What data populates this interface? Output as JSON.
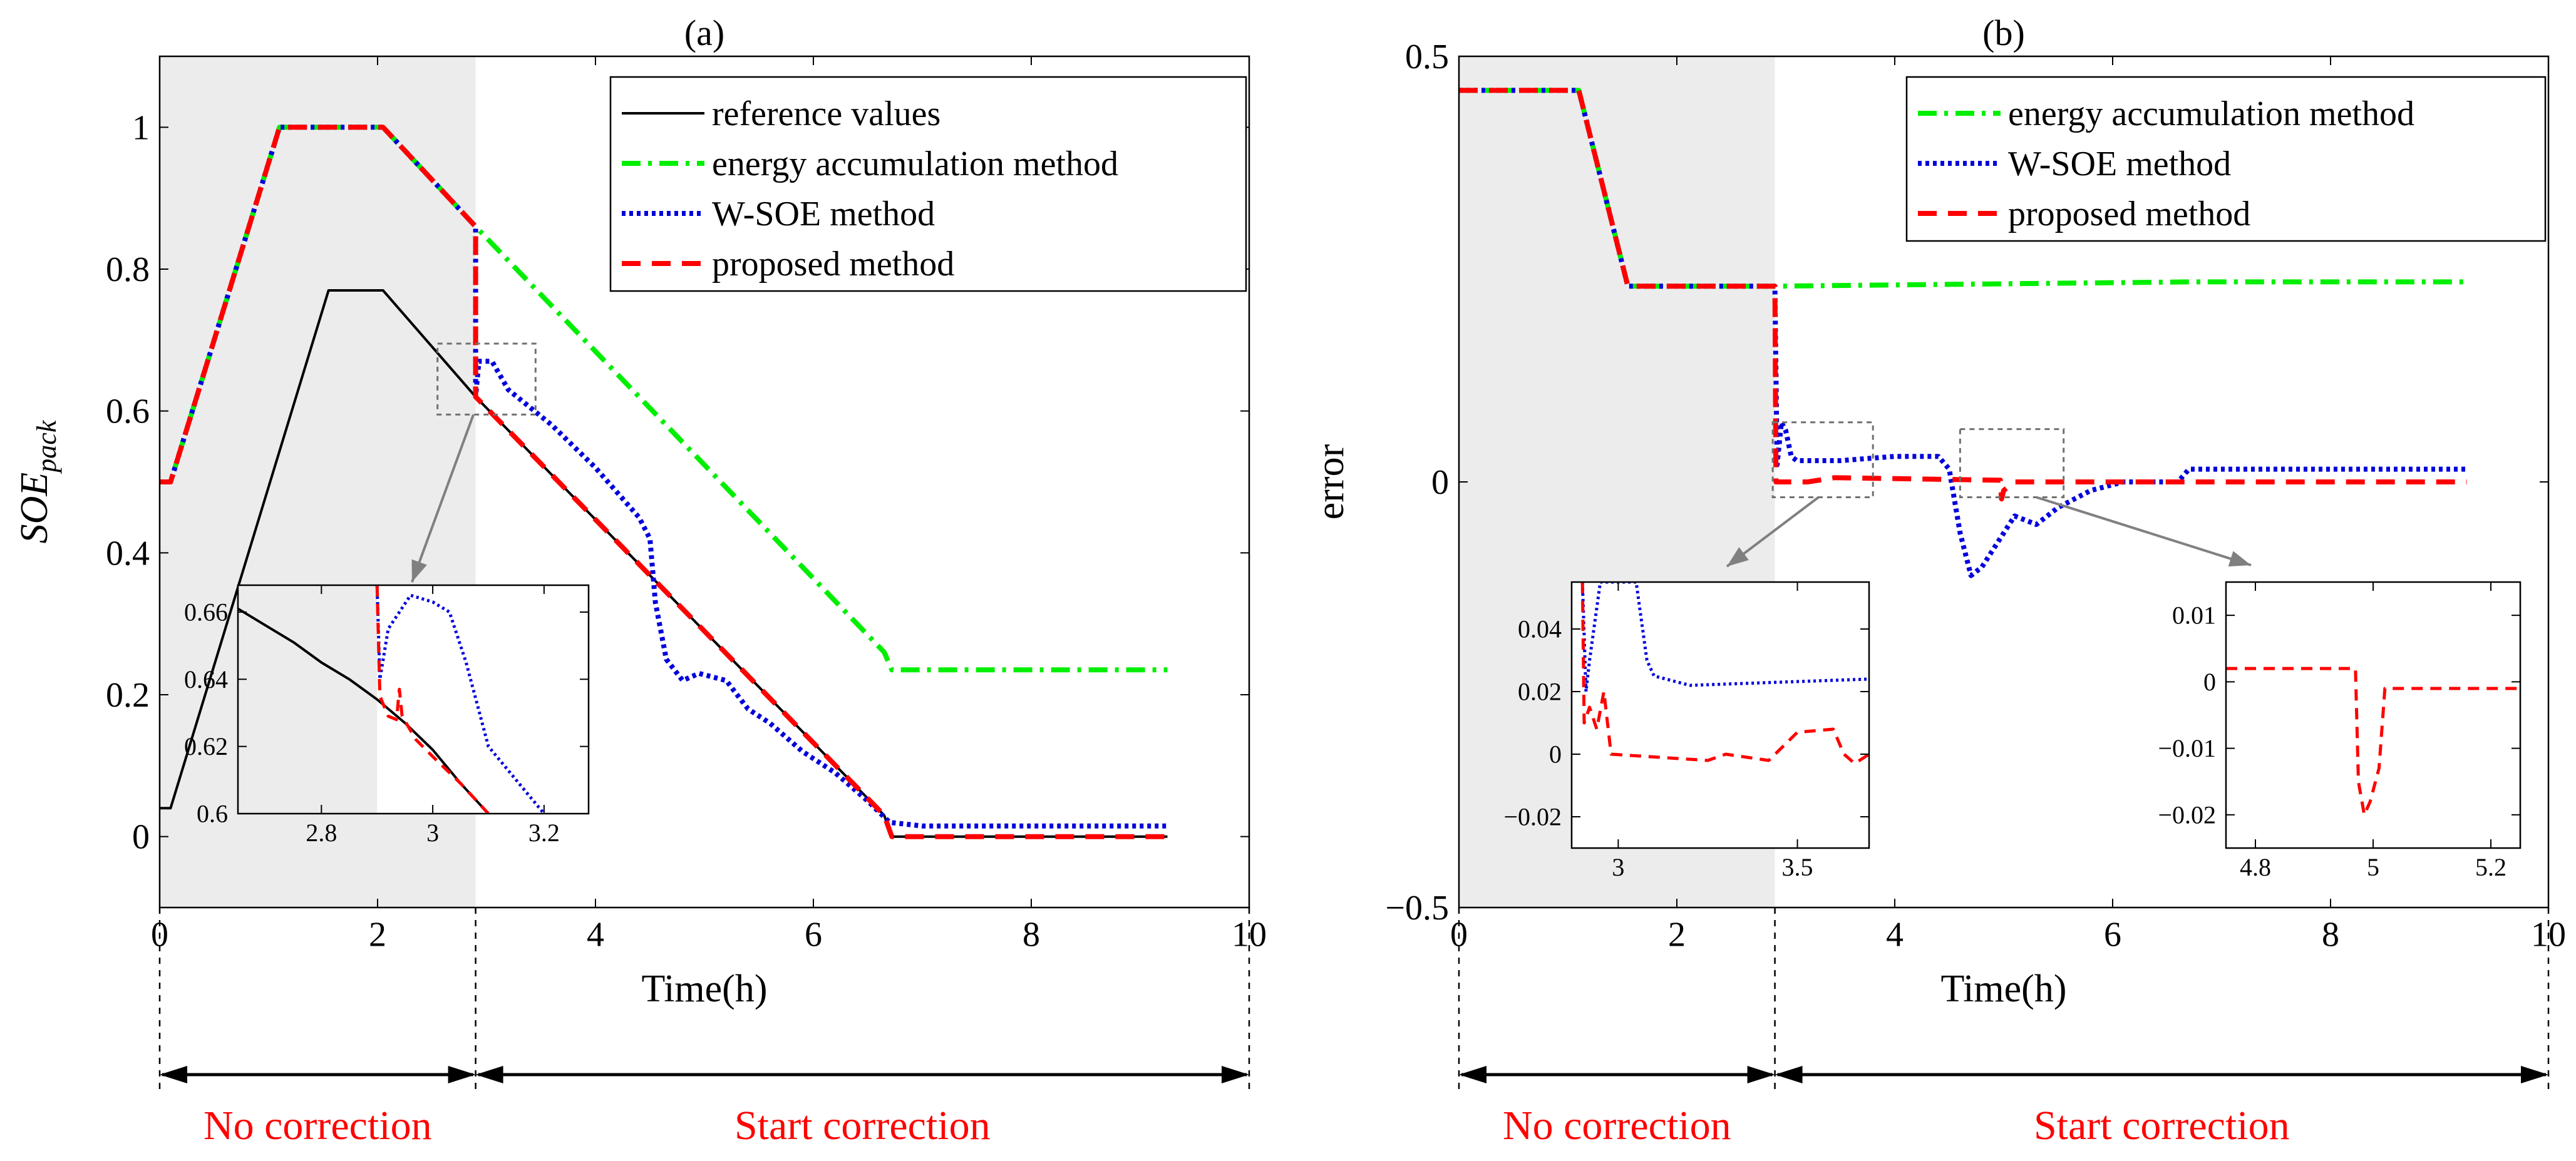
{
  "colors": {
    "reference": "#000000",
    "energy": "#00ee00",
    "wsoe": "#0000dd",
    "proposed": "#ff0000",
    "shade": "#ececec",
    "annotation": "#ff0000",
    "inset_box": "#707070"
  },
  "phases": {
    "no_correction": "No correction",
    "start_correction": "Start correction"
  },
  "chart_data": [
    {
      "panel_label": "(a)",
      "type": "line",
      "xlabel": "Time(h)",
      "ylabel": "SOE",
      "ylabel_sub": "pack",
      "xlim": [
        0,
        10
      ],
      "ylim": [
        -0.1,
        1.1
      ],
      "xticks": [
        0,
        2,
        4,
        6,
        8,
        10
      ],
      "yticks": [
        0,
        0.2,
        0.4,
        0.6,
        0.8,
        1
      ],
      "shaded_x_range": [
        0,
        2.9
      ],
      "grid": false,
      "legend_position": "top-right",
      "series": [
        {
          "name": "reference values",
          "key": "reference",
          "style": "solid",
          "points": [
            [
              0,
              0.04
            ],
            [
              0.1,
              0.04
            ],
            [
              1.55,
              0.77
            ],
            [
              2.05,
              0.77
            ],
            [
              2.9,
              0.62
            ],
            [
              6.65,
              0.03
            ],
            [
              6.72,
              0.0
            ],
            [
              9.25,
              0.0
            ]
          ]
        },
        {
          "name": "energy accumulation method",
          "key": "energy",
          "style": "dashdot",
          "points": [
            [
              0,
              0.5
            ],
            [
              0.1,
              0.5
            ],
            [
              1.1,
              1.0
            ],
            [
              2.05,
              1.0
            ],
            [
              2.9,
              0.86
            ],
            [
              6.65,
              0.26
            ],
            [
              6.72,
              0.235
            ],
            [
              9.25,
              0.235
            ]
          ]
        },
        {
          "name": "W-SOE method",
          "key": "wsoe",
          "style": "dotted",
          "points": [
            [
              0,
              0.5
            ],
            [
              0.1,
              0.5
            ],
            [
              1.1,
              1.0
            ],
            [
              2.05,
              1.0
            ],
            [
              2.9,
              0.86
            ],
            [
              2.9,
              0.62
            ],
            [
              2.93,
              0.67
            ],
            [
              3.05,
              0.67
            ],
            [
              3.2,
              0.63
            ],
            [
              3.6,
              0.58
            ],
            [
              4.0,
              0.52
            ],
            [
              4.4,
              0.45
            ],
            [
              4.5,
              0.42
            ],
            [
              4.55,
              0.33
            ],
            [
              4.65,
              0.25
            ],
            [
              4.8,
              0.22
            ],
            [
              4.95,
              0.23
            ],
            [
              5.2,
              0.22
            ],
            [
              5.4,
              0.18
            ],
            [
              5.6,
              0.16
            ],
            [
              5.9,
              0.12
            ],
            [
              6.2,
              0.09
            ],
            [
              6.5,
              0.05
            ],
            [
              6.7,
              0.02
            ],
            [
              7.0,
              0.015
            ],
            [
              9.25,
              0.015
            ]
          ]
        },
        {
          "name": "proposed method",
          "key": "proposed",
          "style": "dashed",
          "points": [
            [
              0,
              0.5
            ],
            [
              0.1,
              0.5
            ],
            [
              1.1,
              1.0
            ],
            [
              2.05,
              1.0
            ],
            [
              2.9,
              0.86
            ],
            [
              2.9,
              0.62
            ],
            [
              6.65,
              0.03
            ],
            [
              6.72,
              0.0
            ],
            [
              9.25,
              0.0
            ]
          ]
        }
      ],
      "inset": {
        "xlim": [
          2.65,
          3.28
        ],
        "ylim": [
          0.6,
          0.668
        ],
        "xticks": [
          2.8,
          3,
          3.2
        ],
        "yticks": [
          0.6,
          0.62,
          0.64,
          0.66
        ],
        "shade_until": 2.9,
        "series": [
          {
            "key": "reference",
            "style": "solid",
            "points": [
              [
                2.65,
                0.661
              ],
              [
                2.7,
                0.656
              ],
              [
                2.75,
                0.651
              ],
              [
                2.8,
                0.645
              ],
              [
                2.85,
                0.64
              ],
              [
                2.9,
                0.634
              ],
              [
                2.95,
                0.627
              ],
              [
                3.0,
                0.619
              ],
              [
                3.05,
                0.609
              ],
              [
                3.1,
                0.6
              ]
            ]
          },
          {
            "key": "wsoe",
            "style": "dotted",
            "points": [
              [
                2.9,
                0.668
              ],
              [
                2.905,
                0.64
              ],
              [
                2.92,
                0.655
              ],
              [
                2.96,
                0.665
              ],
              [
                3.0,
                0.663
              ],
              [
                3.03,
                0.66
              ],
              [
                3.06,
                0.645
              ],
              [
                3.1,
                0.62
              ],
              [
                3.16,
                0.608
              ],
              [
                3.2,
                0.6
              ]
            ]
          },
          {
            "key": "proposed",
            "style": "dashed",
            "points": [
              [
                2.9,
                0.668
              ],
              [
                2.905,
                0.635
              ],
              [
                2.92,
                0.629
              ],
              [
                2.935,
                0.628
              ],
              [
                2.94,
                0.637
              ],
              [
                2.945,
                0.629
              ],
              [
                2.97,
                0.622
              ],
              [
                3.0,
                0.617
              ],
              [
                3.05,
                0.609
              ],
              [
                3.1,
                0.6
              ]
            ]
          }
        ]
      }
    },
    {
      "panel_label": "(b)",
      "type": "line",
      "xlabel": "Time(h)",
      "ylabel": "error",
      "xlim": [
        0,
        10
      ],
      "ylim": [
        -0.5,
        0.5
      ],
      "xticks": [
        0,
        2,
        4,
        6,
        8,
        10
      ],
      "yticks": [
        -0.5,
        0,
        0.5
      ],
      "shaded_x_range": [
        0,
        2.9
      ],
      "grid": false,
      "legend_position": "top-right",
      "series": [
        {
          "name": "energy accumulation method",
          "key": "energy",
          "style": "dashdot",
          "points": [
            [
              0,
              0.46
            ],
            [
              1.1,
              0.46
            ],
            [
              1.55,
              0.23
            ],
            [
              2.9,
              0.23
            ],
            [
              6.7,
              0.235
            ],
            [
              9.25,
              0.235
            ]
          ]
        },
        {
          "name": "W-SOE method",
          "key": "wsoe",
          "style": "dotted",
          "points": [
            [
              0,
              0.46
            ],
            [
              1.1,
              0.46
            ],
            [
              1.55,
              0.23
            ],
            [
              2.9,
              0.23
            ],
            [
              2.92,
              0.02
            ],
            [
              2.96,
              0.07
            ],
            [
              3.0,
              0.06
            ],
            [
              3.05,
              0.03
            ],
            [
              3.1,
              0.025
            ],
            [
              3.5,
              0.025
            ],
            [
              4.0,
              0.03
            ],
            [
              4.4,
              0.03
            ],
            [
              4.5,
              0.015
            ],
            [
              4.6,
              -0.06
            ],
            [
              4.7,
              -0.11
            ],
            [
              4.8,
              -0.1
            ],
            [
              4.95,
              -0.07
            ],
            [
              5.1,
              -0.04
            ],
            [
              5.3,
              -0.05
            ],
            [
              5.5,
              -0.03
            ],
            [
              5.8,
              -0.01
            ],
            [
              6.1,
              0.0
            ],
            [
              6.3,
              0.0
            ],
            [
              6.6,
              0.0
            ],
            [
              6.7,
              0.015
            ],
            [
              9.25,
              0.015
            ]
          ]
        },
        {
          "name": "proposed method",
          "key": "proposed",
          "style": "dashed",
          "points": [
            [
              0,
              0.46
            ],
            [
              1.1,
              0.46
            ],
            [
              1.55,
              0.23
            ],
            [
              2.9,
              0.23
            ],
            [
              2.91,
              0.0
            ],
            [
              3.2,
              0.0
            ],
            [
              3.45,
              0.005
            ],
            [
              4.97,
              0.002
            ],
            [
              4.98,
              -0.02
            ],
            [
              5.0,
              -0.01
            ],
            [
              5.1,
              0.0
            ],
            [
              6.7,
              0.0
            ],
            [
              9.25,
              0.0
            ]
          ]
        }
      ],
      "inset_left": {
        "xlim": [
          2.87,
          3.7
        ],
        "ylim": [
          -0.03,
          0.055
        ],
        "xticks": [
          3,
          3.5
        ],
        "yticks": [
          -0.02,
          0,
          0.02,
          0.04
        ],
        "series": [
          {
            "key": "wsoe",
            "style": "dotted",
            "points": [
              [
                2.9,
                0.055
              ],
              [
                2.91,
                0.02
              ],
              [
                2.92,
                0.03
              ],
              [
                2.95,
                0.055
              ],
              [
                3.05,
                0.055
              ],
              [
                3.08,
                0.03
              ],
              [
                3.1,
                0.025
              ],
              [
                3.2,
                0.022
              ],
              [
                3.7,
                0.024
              ]
            ]
          },
          {
            "key": "proposed",
            "style": "dashed",
            "points": [
              [
                2.9,
                0.055
              ],
              [
                2.905,
                0.01
              ],
              [
                2.92,
                0.015
              ],
              [
                2.94,
                0.008
              ],
              [
                2.96,
                0.02
              ],
              [
                2.98,
                0.0
              ],
              [
                3.25,
                -0.002
              ],
              [
                3.3,
                0.0
              ],
              [
                3.42,
                -0.002
              ],
              [
                3.5,
                0.007
              ],
              [
                3.6,
                0.008
              ],
              [
                3.63,
                0.0
              ],
              [
                3.66,
                -0.003
              ],
              [
                3.7,
                0.0
              ]
            ]
          }
        ]
      },
      "inset_right": {
        "xlim": [
          4.75,
          5.25
        ],
        "ylim": [
          -0.025,
          0.015
        ],
        "xticks": [
          4.8,
          5,
          5.2
        ],
        "yticks": [
          -0.02,
          -0.01,
          0,
          0.01
        ],
        "series": [
          {
            "key": "proposed",
            "style": "dashed",
            "points": [
              [
                4.75,
                0.002
              ],
              [
                4.97,
                0.002
              ],
              [
                4.975,
                -0.015
              ],
              [
                4.985,
                -0.02
              ],
              [
                4.995,
                -0.018
              ],
              [
                5.01,
                -0.013
              ],
              [
                5.02,
                -0.001
              ],
              [
                5.25,
                -0.001
              ]
            ]
          }
        ]
      }
    }
  ]
}
